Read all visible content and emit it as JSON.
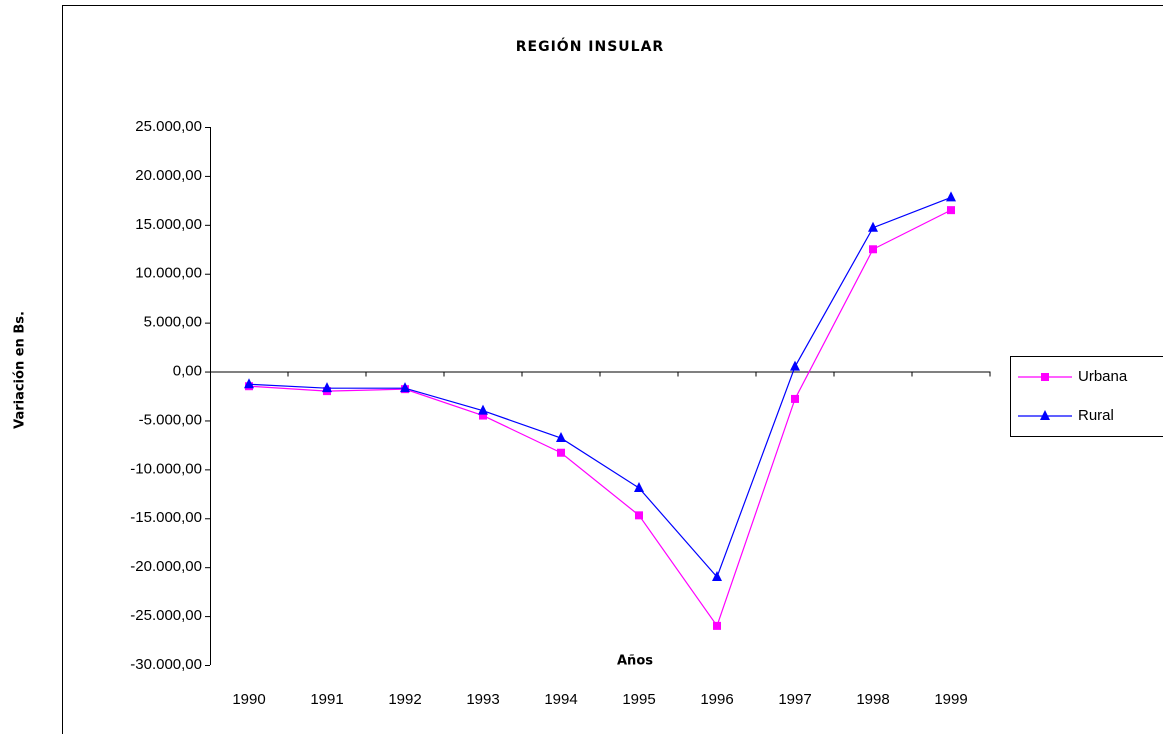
{
  "chart_data": {
    "type": "line",
    "title": "REGIÓN INSULAR",
    "y_label": "Variación en Bs.",
    "x_label": "Años",
    "categories": [
      "1990",
      "1991",
      "1992",
      "1993",
      "1994",
      "1995",
      "1996",
      "1997",
      "1998",
      "1999"
    ],
    "series": [
      {
        "name": "Urbana",
        "color": "#ff00ff",
        "marker": "square",
        "values": [
          -1500,
          -2000,
          -1800,
          -4500,
          -8300,
          -14700,
          -26000,
          -2800,
          12500,
          16500
        ]
      },
      {
        "name": "Rural",
        "color": "#0000ff",
        "marker": "triangle",
        "values": [
          -1300,
          -1700,
          -1700,
          -4000,
          -6800,
          -11900,
          -21000,
          500,
          14700,
          17800
        ]
      }
    ],
    "ylim": [
      -30000,
      25000
    ],
    "yticks": [
      {
        "value": -30000,
        "label": "-30.000,00"
      },
      {
        "value": -25000,
        "label": "-25.000,00"
      },
      {
        "value": -20000,
        "label": "-20.000,00"
      },
      {
        "value": -15000,
        "label": "-15.000,00"
      },
      {
        "value": -10000,
        "label": "-10.000,00"
      },
      {
        "value": -5000,
        "label": "-5.000,00"
      },
      {
        "value": 0,
        "label": "0,00"
      },
      {
        "value": 5000,
        "label": "5.000,00"
      },
      {
        "value": 10000,
        "label": "10.000,00"
      },
      {
        "value": 15000,
        "label": "15.000,00"
      },
      {
        "value": 20000,
        "label": "20.000,00"
      },
      {
        "value": 25000,
        "label": "25.000,00"
      }
    ],
    "legend": "right"
  }
}
